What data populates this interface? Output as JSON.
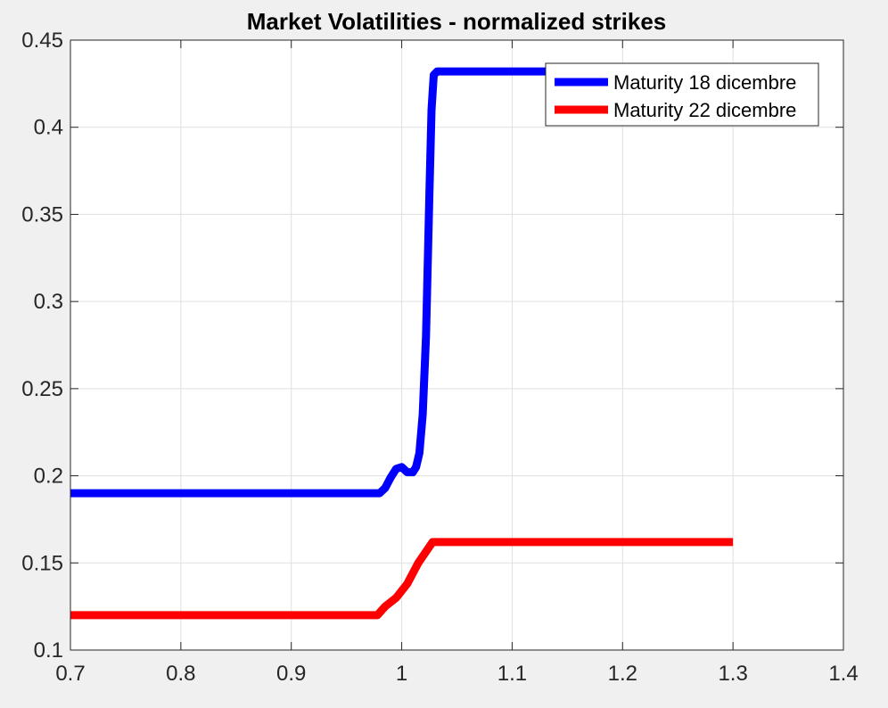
{
  "chart_data": {
    "type": "line",
    "title": "Market Volatilities - normalized strikes",
    "xlabel": "",
    "ylabel": "",
    "xlim": [
      0.7,
      1.4
    ],
    "ylim": [
      0.1,
      0.45
    ],
    "x_ticks": [
      0.7,
      0.8,
      0.9,
      1.0,
      1.1,
      1.2,
      1.3,
      1.4
    ],
    "x_tick_labels": [
      "0.7",
      "0.8",
      "0.9",
      "1",
      "1.1",
      "1.2",
      "1.3",
      "1.4"
    ],
    "y_ticks": [
      0.1,
      0.15,
      0.2,
      0.25,
      0.3,
      0.35,
      0.4,
      0.45
    ],
    "y_tick_labels": [
      "0.1",
      "0.15",
      "0.2",
      "0.25",
      "0.3",
      "0.35",
      "0.4",
      "0.45"
    ],
    "grid": true,
    "legend_position": "top-right",
    "series": [
      {
        "name": "Maturity 18 dicembre",
        "color": "#0000ff",
        "points": [
          [
            0.7,
            0.19
          ],
          [
            0.97,
            0.19
          ],
          [
            0.98,
            0.19
          ],
          [
            0.985,
            0.193
          ],
          [
            0.99,
            0.199
          ],
          [
            0.995,
            0.204
          ],
          [
            1.0,
            0.205
          ],
          [
            1.005,
            0.202
          ],
          [
            1.01,
            0.202
          ],
          [
            1.013,
            0.205
          ],
          [
            1.016,
            0.213
          ],
          [
            1.019,
            0.235
          ],
          [
            1.022,
            0.28
          ],
          [
            1.025,
            0.36
          ],
          [
            1.027,
            0.41
          ],
          [
            1.029,
            0.43
          ],
          [
            1.032,
            0.432
          ],
          [
            1.13,
            0.432
          ]
        ]
      },
      {
        "name": "Maturity 22 dicembre",
        "color": "#ff0000",
        "points": [
          [
            0.7,
            0.12
          ],
          [
            0.978,
            0.12
          ],
          [
            0.985,
            0.125
          ],
          [
            0.995,
            0.13
          ],
          [
            1.005,
            0.138
          ],
          [
            1.015,
            0.15
          ],
          [
            1.028,
            0.162
          ],
          [
            1.3,
            0.162
          ]
        ]
      }
    ]
  }
}
